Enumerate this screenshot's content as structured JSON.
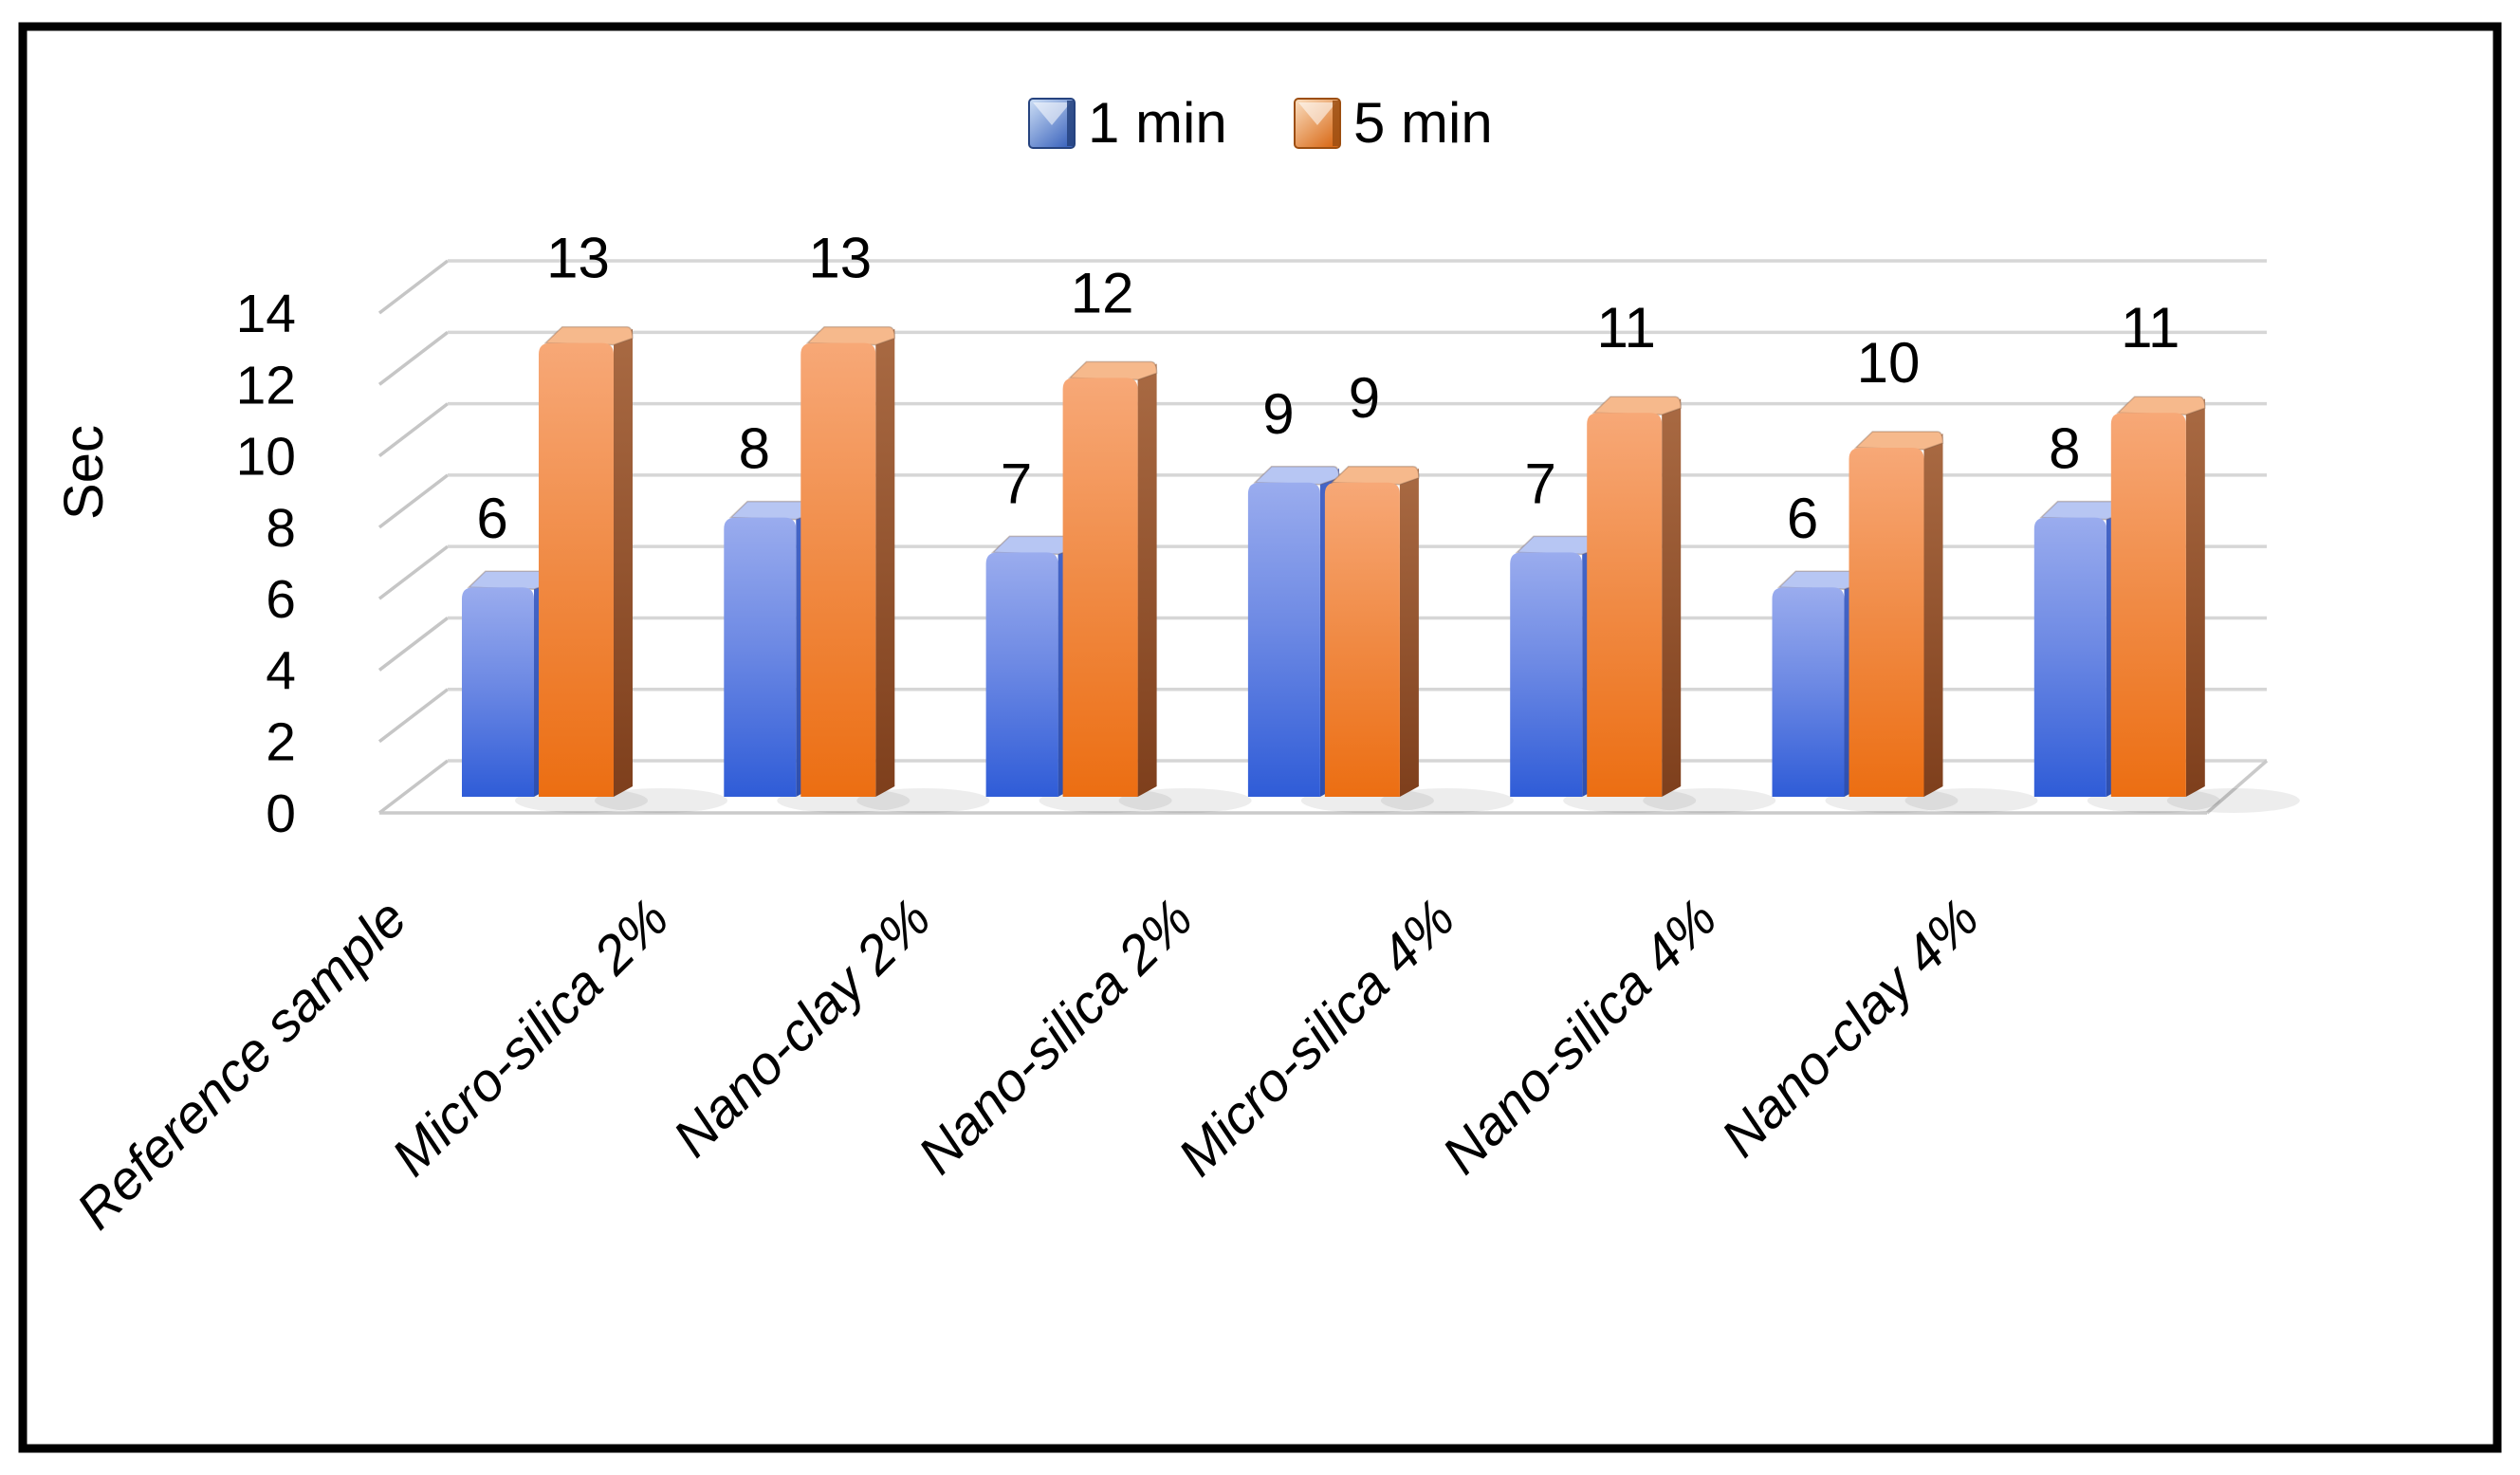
{
  "chart_data": {
    "type": "bar",
    "style": "3d-clustered-column",
    "title": "",
    "categories": [
      "Reference sample",
      "Micro-silica 2%",
      "Nano-clay 2%",
      "Nano-silica 2%",
      "Micro-silica 4%",
      "Nano-silica 4%",
      "Nano-clay 4%"
    ],
    "series": [
      {
        "name": "1 min",
        "values": [
          6,
          8,
          7,
          9,
          7,
          6,
          8
        ],
        "color": "#4472C4"
      },
      {
        "name": "5 min",
        "values": [
          13,
          13,
          12,
          9,
          11,
          10,
          11
        ],
        "color": "#ED7D31"
      }
    ],
    "xlabel": "",
    "ylabel": "Sec",
    "yticks": [
      0,
      2,
      4,
      6,
      8,
      10,
      12,
      14
    ],
    "ylim": [
      0,
      14
    ],
    "grid": true,
    "legend_position": "top",
    "data_labels": true
  },
  "legend": {
    "items": [
      {
        "label": "1 min",
        "swatch": "blue-3d-square-icon"
      },
      {
        "label": "5 min",
        "swatch": "orange-3d-square-icon"
      }
    ]
  },
  "colors": {
    "blue_front_top": "#9AACEE",
    "blue_front_bottom": "#2F5CD7",
    "blue_side": "#2E4FAE",
    "blue_top_face": "#B7C6F3",
    "orange_front_top": "#F7A877",
    "orange_front_bottom": "#EC6E12",
    "orange_side_top": "#A96A43",
    "orange_side_bottom": "#7E3F1C",
    "orange_top_face": "#F6B98C",
    "legend_blue_light": "#CFE0F6",
    "legend_blue_dark": "#3E66BE",
    "legend_orange_light": "#FBE0C3",
    "legend_orange_dark": "#D96A18",
    "gridline": "#D6D6D6",
    "wall_diagonal": "#C6C6C6",
    "floor_edge": "#CACACA",
    "text": "#000000",
    "border": "#000000",
    "background": "#FFFFFF"
  }
}
